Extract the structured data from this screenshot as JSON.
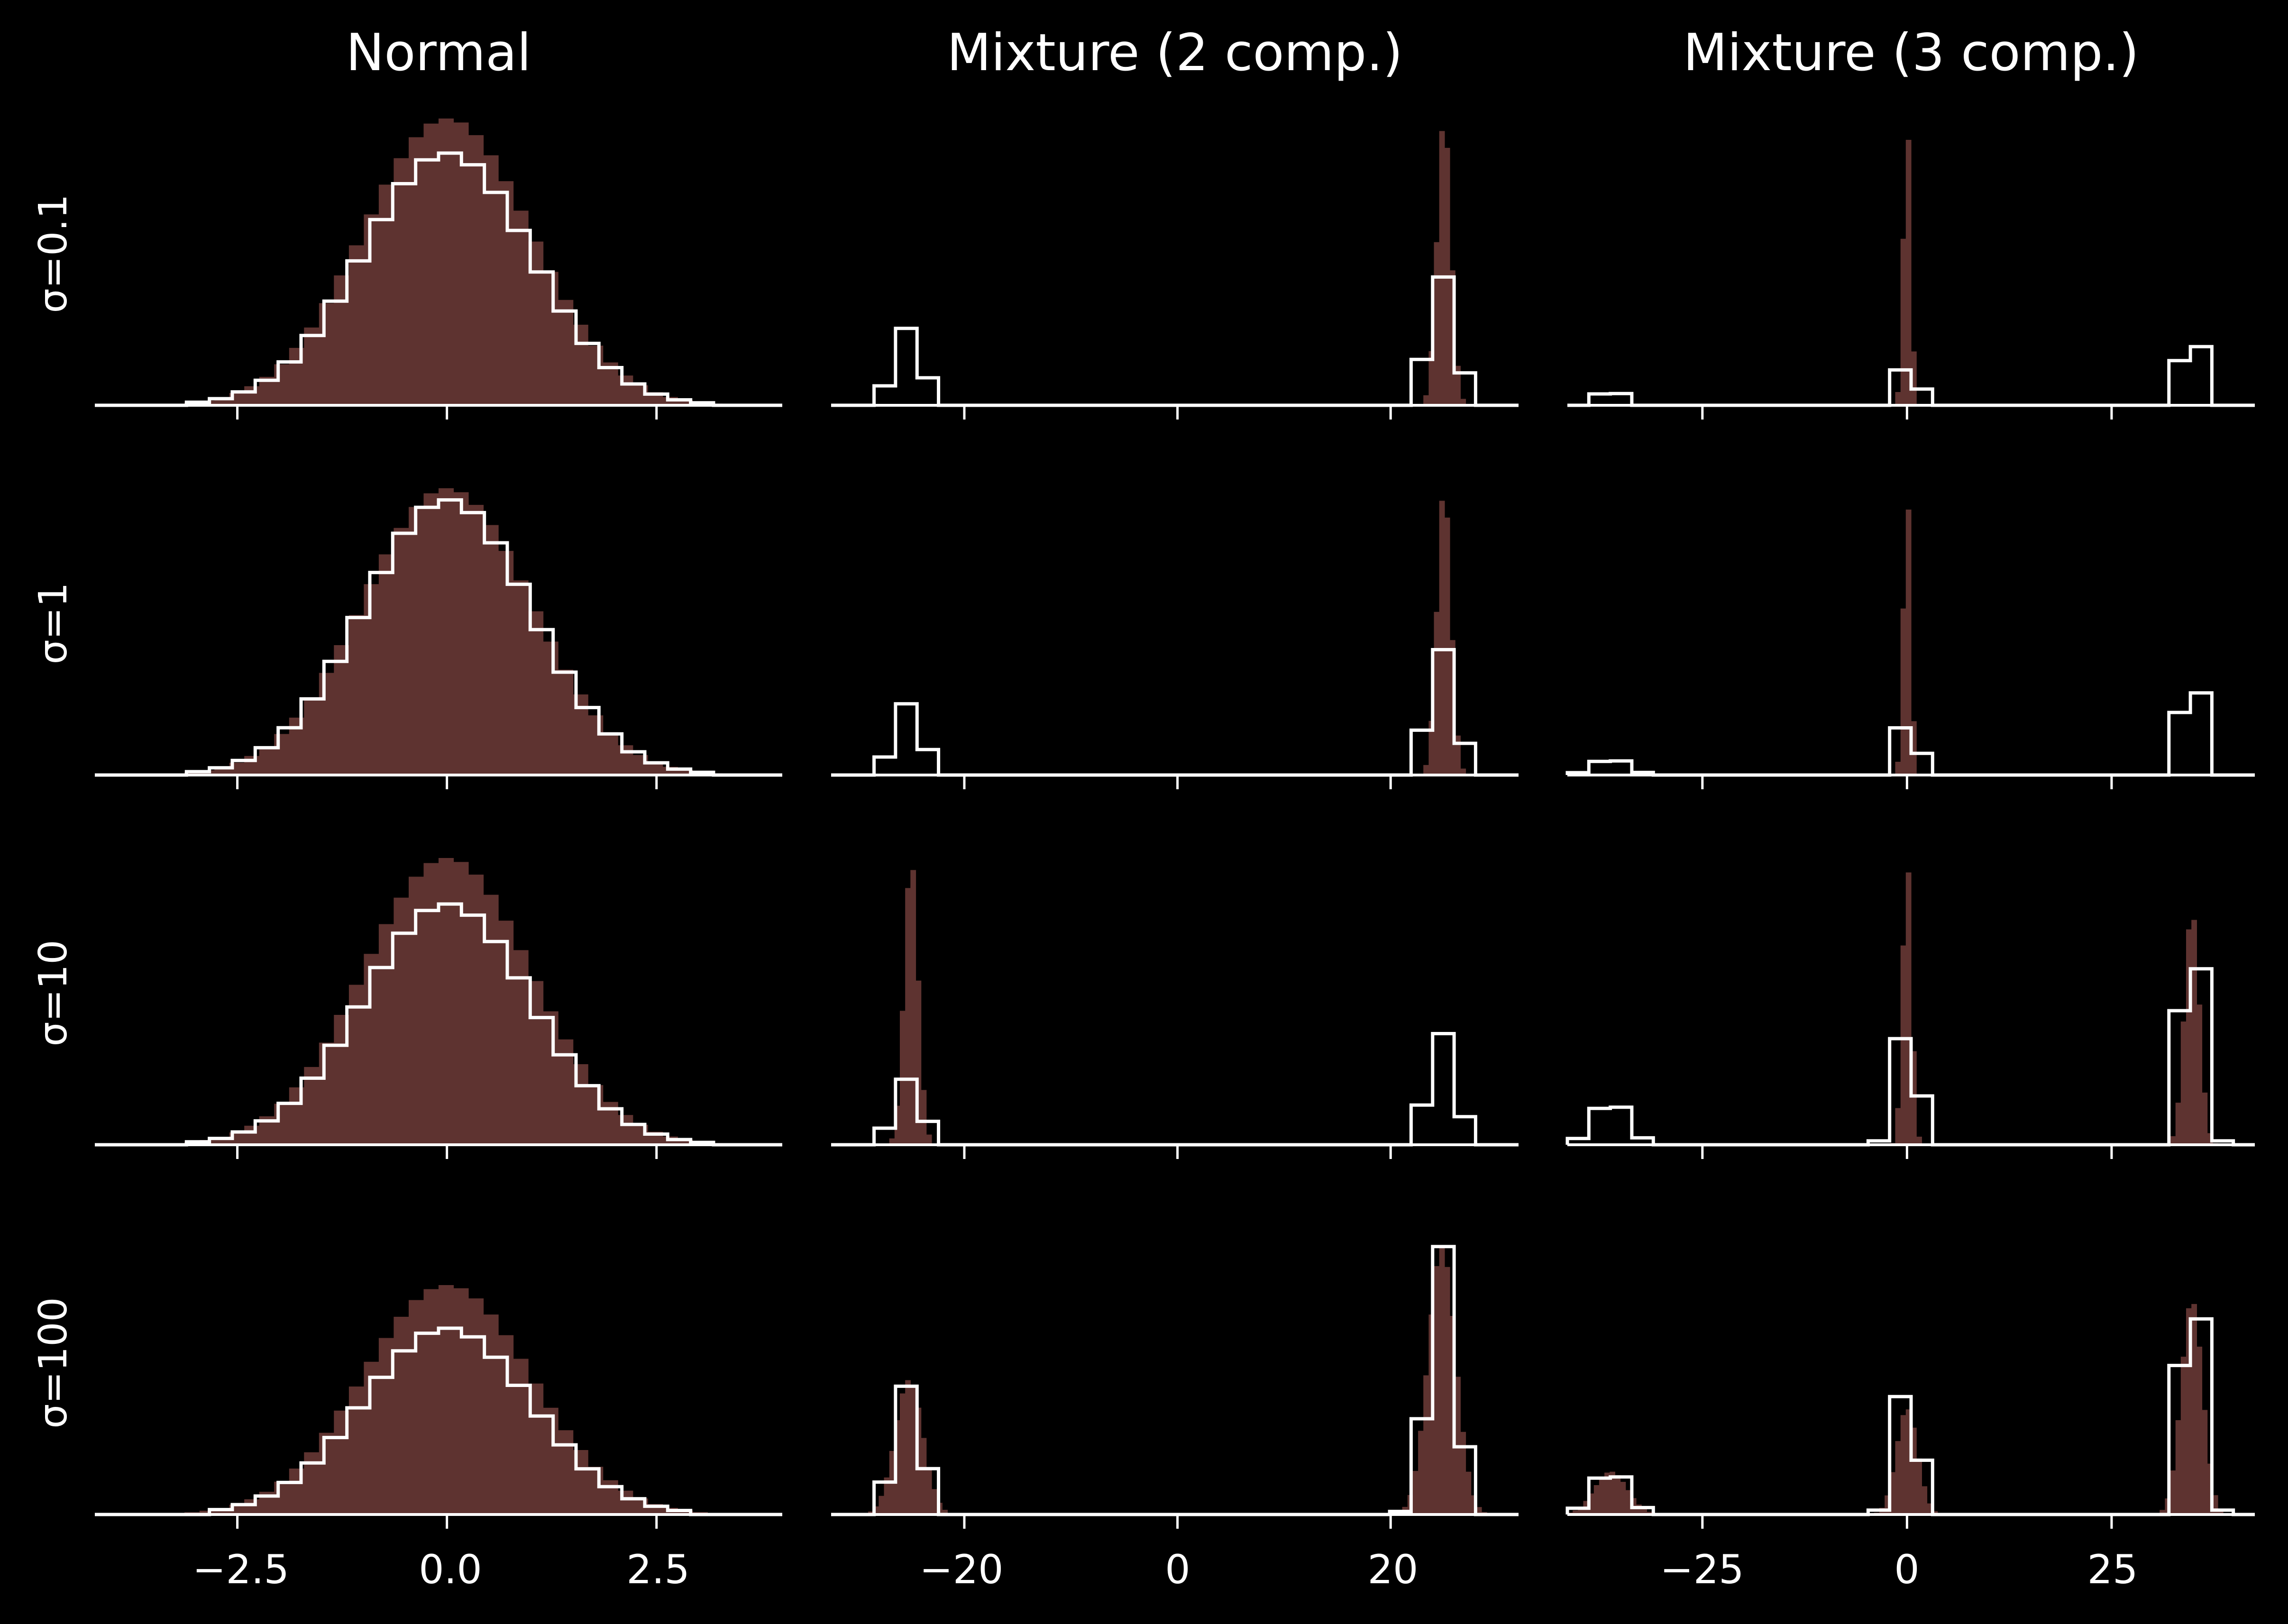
{
  "colors": {
    "background": "#000000",
    "sample_fill": "#5e3330",
    "reference_line": "#ffffff",
    "axis": "#ffffff",
    "text": "#ffffff"
  },
  "chart_data": {
    "type": "histogram-grid",
    "description_of_series": [
      "filled histogram (samples)",
      "white step outline (reference)"
    ],
    "columns": [
      {
        "key": "normal",
        "title": "Normal",
        "xlim": [
          -4.2,
          4.0
        ],
        "xticks": [
          -2.5,
          0.0,
          2.5
        ],
        "xtick_labels": [
          "−2.5",
          "0.0",
          "2.5"
        ]
      },
      {
        "key": "mix2",
        "title": "Mixture (2 comp.)",
        "xlim": [
          -32.5,
          32.0
        ],
        "xticks": [
          -20,
          0,
          20
        ],
        "xtick_labels": [
          "−20",
          "0",
          "20"
        ]
      },
      {
        "key": "mix3",
        "title": "Mixture (3 comp.)",
        "xlim": [
          -41.5,
          42.5
        ],
        "xticks": [
          -25,
          0,
          25
        ],
        "xtick_labels": [
          "−25",
          "0",
          "25"
        ]
      }
    ],
    "rows": [
      {
        "label": "σ=0.1",
        "panels": [
          {
            "filled_peaks": [
              {
                "center": 0.0,
                "width": 1.0,
                "height": 1.0
              }
            ],
            "outline_peaks": [
              {
                "center": 0.0,
                "width": 1.0,
                "height": 0.88
              }
            ]
          },
          {
            "filled_peaks": [
              {
                "center": 25.0,
                "width": 0.65,
                "height": 1.0
              }
            ],
            "outline_peaks": [
              {
                "center": -25.3,
                "width": 1.3,
                "height": 0.27
              },
              {
                "center": 24.8,
                "width": 1.3,
                "height": 0.45
              }
            ]
          },
          {
            "filled_peaks": [
              {
                "center": 0.0,
                "width": 0.45,
                "height": 1.0
              }
            ],
            "outline_peaks": [
              {
                "center": -36.2,
                "width": 2.0,
                "height": 0.05
              },
              {
                "center": 0.0,
                "width": 1.3,
                "height": 0.15
              },
              {
                "center": 34.8,
                "width": 1.3,
                "height": 0.3
              }
            ]
          }
        ]
      },
      {
        "label": "σ=1",
        "panels": [
          {
            "filled_peaks": [
              {
                "center": 0.0,
                "width": 1.0,
                "height": 1.0
              }
            ],
            "outline_peaks": [
              {
                "center": 0.0,
                "width": 1.0,
                "height": 0.96
              }
            ]
          },
          {
            "filled_peaks": [
              {
                "center": 25.0,
                "width": 0.65,
                "height": 1.0
              }
            ],
            "outline_peaks": [
              {
                "center": -25.3,
                "width": 1.3,
                "height": 0.25
              },
              {
                "center": 24.8,
                "width": 1.3,
                "height": 0.44
              }
            ]
          },
          {
            "filled_peaks": [
              {
                "center": 0.0,
                "width": 0.45,
                "height": 1.0
              }
            ],
            "outline_peaks": [
              {
                "center": -36.2,
                "width": 2.0,
                "height": 0.06
              },
              {
                "center": 0.0,
                "width": 1.3,
                "height": 0.2
              },
              {
                "center": 34.8,
                "width": 1.3,
                "height": 0.42
              }
            ]
          }
        ]
      },
      {
        "label": "σ=10",
        "panels": [
          {
            "filled_peaks": [
              {
                "center": 0.0,
                "width": 1.0,
                "height": 1.0
              }
            ],
            "outline_peaks": [
              {
                "center": 0.0,
                "width": 1.0,
                "height": 0.84
              }
            ]
          },
          {
            "filled_peaks": [
              {
                "center": -25.0,
                "width": 0.65,
                "height": 1.0
              }
            ],
            "outline_peaks": [
              {
                "center": -25.3,
                "width": 1.3,
                "height": 0.23
              },
              {
                "center": 24.8,
                "width": 1.3,
                "height": 0.39
              }
            ]
          },
          {
            "filled_peaks": [
              {
                "center": 0.0,
                "width": 0.55,
                "height": 1.0
              },
              {
                "center": 34.8,
                "width": 0.9,
                "height": 0.82
              }
            ],
            "outline_peaks": [
              {
                "center": -36.2,
                "width": 2.0,
                "height": 0.16
              },
              {
                "center": 0.0,
                "width": 1.3,
                "height": 0.45
              },
              {
                "center": 34.8,
                "width": 1.3,
                "height": 0.9
              }
            ]
          }
        ]
      },
      {
        "label": "σ=100",
        "panels": [
          {
            "filled_peaks": [
              {
                "center": 0.0,
                "width": 1.0,
                "height": 0.8
              }
            ],
            "outline_peaks": [
              {
                "center": 0.0,
                "width": 1.0,
                "height": 0.65
              }
            ]
          },
          {
            "filled_peaks": [
              {
                "center": -25.2,
                "width": 1.3,
                "height": 0.47
              },
              {
                "center": 24.8,
                "width": 1.3,
                "height": 0.93
              }
            ],
            "outline_peaks": [
              {
                "center": -25.3,
                "width": 1.3,
                "height": 0.45
              },
              {
                "center": 24.8,
                "width": 1.3,
                "height": 0.94
              }
            ]
          },
          {
            "filled_peaks": [
              {
                "center": -36.2,
                "width": 2.0,
                "height": 0.15
              },
              {
                "center": 0.0,
                "width": 1.3,
                "height": 0.37
              },
              {
                "center": 34.8,
                "width": 1.3,
                "height": 0.75
              }
            ],
            "outline_peaks": [
              {
                "center": -36.2,
                "width": 2.0,
                "height": 0.16
              },
              {
                "center": 0.0,
                "width": 1.3,
                "height": 0.5
              },
              {
                "center": 34.8,
                "width": 1.3,
                "height": 1.0
              }
            ]
          }
        ]
      }
    ]
  }
}
